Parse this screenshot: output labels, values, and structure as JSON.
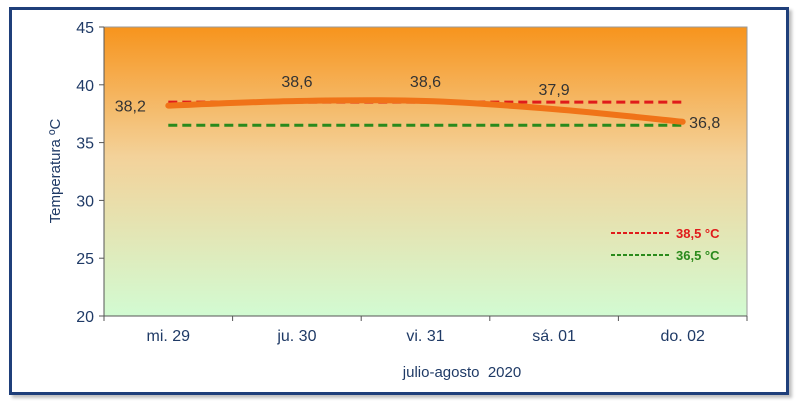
{
  "chart_data": {
    "type": "line",
    "categories": [
      "mi. 29",
      "ju. 30",
      "vi. 31",
      "sá. 01",
      "do. 02"
    ],
    "series": [
      {
        "name": "",
        "values": [
          38.2,
          38.6,
          38.6,
          37.9,
          36.8
        ],
        "color": "#f07318",
        "labels": [
          "38,2",
          "38,6",
          "38,6",
          "37,9",
          "36,8"
        ]
      }
    ],
    "reference_lines": [
      {
        "value": 38.5,
        "label": "38,5 °C",
        "color": "#e01b1b",
        "style": "dashed"
      },
      {
        "value": 36.5,
        "label": "36,5 °C",
        "color": "#2a8a1c",
        "style": "dashed"
      }
    ],
    "ylabel": "Temperatura ºC",
    "xlabel": "julio-agosto  2020",
    "ylim": [
      20,
      45
    ],
    "yticks": [
      20,
      25,
      30,
      35,
      40,
      45
    ],
    "grid": false,
    "background": {
      "top": "#f7941d",
      "bottom": "#d2fbd2"
    },
    "legend_position": "right"
  }
}
